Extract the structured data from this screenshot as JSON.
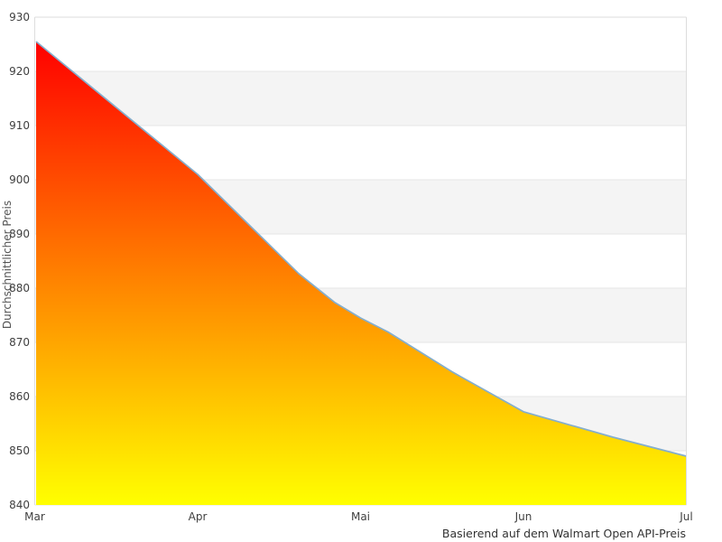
{
  "chart_data": {
    "type": "area",
    "title": "",
    "ylabel": "Durchschnittlicher Preis",
    "xlabel": "",
    "caption": "Basierend auf dem Walmart Open API-Preis",
    "x_ticks": [
      "Mar",
      "Apr",
      "Mai",
      "Jun",
      "Jul"
    ],
    "y_ticks": [
      "930",
      "920",
      "910",
      "900",
      "890",
      "880",
      "870",
      "860",
      "850",
      "840"
    ],
    "ylim": [
      840,
      930
    ],
    "xlim": [
      0,
      4
    ],
    "grid": "horizontal-bands-alternating",
    "legend_position": "none",
    "monthly_values": {
      "Mar": 925.5,
      "Apr": 901,
      "Mai": 874.5,
      "Jun": 857,
      "Jul": 849
    },
    "points": [
      [
        0,
        925.5
      ],
      [
        1,
        901
      ],
      [
        1.62,
        882.7
      ],
      [
        1.84,
        877.4
      ],
      [
        2,
        874.5
      ],
      [
        2.17,
        871.9
      ],
      [
        2.56,
        864.6
      ],
      [
        3,
        857.2
      ],
      [
        3.55,
        852.5
      ],
      [
        4,
        849
      ]
    ],
    "colors": {
      "gradient_top": "#ff0000",
      "gradient_bottom": "#ffff00",
      "line": "#84aecd",
      "band": "#f4f4f4",
      "gridline": "#e6e6e6",
      "border": "#dddddd",
      "tick_text": "#404040",
      "caption_text": "#333333"
    }
  }
}
